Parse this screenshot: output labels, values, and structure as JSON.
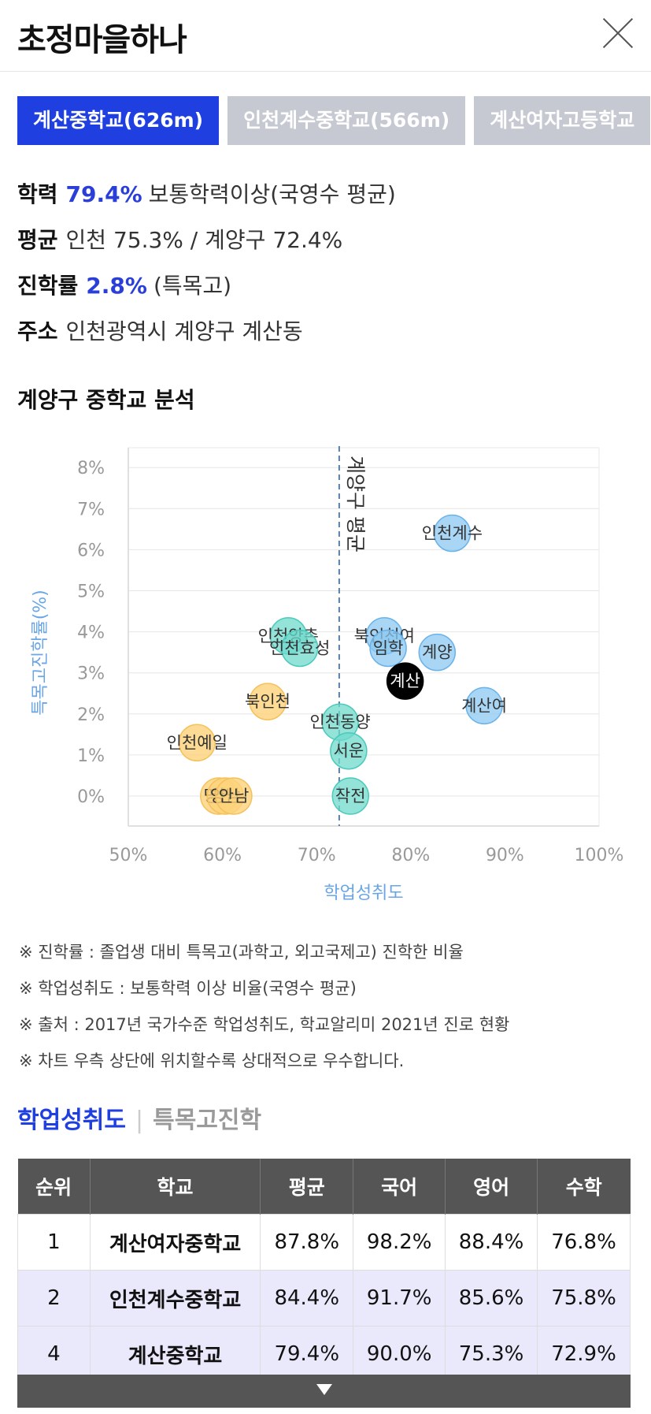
{
  "header": {
    "title": "초정마을하나",
    "close_icon": "close-icon"
  },
  "school_tabs": [
    {
      "label": "계산중학교(626m)",
      "active": true
    },
    {
      "label": "인천계수중학교(566m)",
      "active": false
    },
    {
      "label": "계산여자고등학교",
      "active": false
    }
  ],
  "info": {
    "achievement": {
      "key": "학력",
      "value": "79.4%",
      "desc": "보통학력이상(국영수 평균)"
    },
    "average": {
      "key": "평균",
      "desc": "인천 75.3% / 계양구 72.4%"
    },
    "advance": {
      "key": "진학률",
      "value": "2.8%",
      "desc": "(특목고)"
    },
    "address": {
      "key": "주소",
      "desc": "인천광역시 계양구 계산동"
    }
  },
  "section_title": "계양구 중학교 분석",
  "chart_data": {
    "type": "scatter",
    "xlabel": "학업성취도",
    "ylabel": "특목고진학률(%)",
    "xlim": [
      50,
      100
    ],
    "ylim": [
      -0.7,
      8.5
    ],
    "x_ticks": [
      "50%",
      "60%",
      "70%",
      "80%",
      "90%",
      "100%"
    ],
    "y_ticks": [
      "0%",
      "1%",
      "2%",
      "3%",
      "4%",
      "5%",
      "6%",
      "7%",
      "8%"
    ],
    "reference_line": {
      "x": 72.4,
      "label": "계양구 평균"
    },
    "colors": {
      "blue": "#8cc8f0",
      "teal": "#6fd9cc",
      "yellow": "#fdd27a",
      "black": "#000000"
    },
    "points": [
      {
        "name": "인천계수",
        "x": 84.4,
        "y": 6.4,
        "color": "blue"
      },
      {
        "name": "북인천여",
        "x": 77.2,
        "y": 3.9,
        "color": "blue"
      },
      {
        "name": "임학",
        "x": 77.6,
        "y": 3.6,
        "color": "blue"
      },
      {
        "name": "계양",
        "x": 82.8,
        "y": 3.5,
        "color": "blue"
      },
      {
        "name": "계산",
        "x": 79.4,
        "y": 2.8,
        "color": "black"
      },
      {
        "name": "계산여",
        "x": 87.8,
        "y": 2.2,
        "color": "blue"
      },
      {
        "name": "인천양촌",
        "x": 67.0,
        "y": 3.9,
        "color": "teal"
      },
      {
        "name": "인천효성",
        "x": 68.2,
        "y": 3.6,
        "color": "teal"
      },
      {
        "name": "북인천",
        "x": 64.8,
        "y": 2.3,
        "color": "yellow"
      },
      {
        "name": "인천동양",
        "x": 72.5,
        "y": 1.8,
        "color": "teal"
      },
      {
        "name": "서운",
        "x": 73.4,
        "y": 1.1,
        "color": "teal"
      },
      {
        "name": "인천예일",
        "x": 57.3,
        "y": 1.3,
        "color": "yellow"
      },
      {
        "name": "작전",
        "x": 73.6,
        "y": 0.0,
        "color": "teal"
      },
      {
        "name": "명현",
        "x": 59.6,
        "y": 0.0,
        "color": "yellow"
      },
      {
        "name": "양남",
        "x": 60.3,
        "y": 0.0,
        "color": "yellow"
      },
      {
        "name": "안남",
        "x": 61.2,
        "y": 0.0,
        "color": "yellow"
      }
    ]
  },
  "notes": [
    "※ 진학률 : 졸업생 대비 특목고(과학고, 외고국제고) 진학한 비율",
    "※ 학업성취도 : 보통학력 이상 비율(국영수 평균)",
    "※ 출처 : 2017년 국가수준 학업성취도, 학교알리미 2021년 진로 현황",
    "※ 차트 우측 상단에 위치할수록 상대적으로 우수합니다."
  ],
  "subtabs": {
    "active": "학업성취도",
    "separator": "|",
    "inactive": "특목고진학"
  },
  "table": {
    "headers": [
      "순위",
      "학교",
      "평균",
      "국어",
      "영어",
      "수학"
    ],
    "rows": [
      {
        "rank": "1",
        "school": "계산여자중학교",
        "avg": "87.8%",
        "kor": "98.2%",
        "eng": "88.4%",
        "math": "76.8%",
        "highlight": false
      },
      {
        "rank": "2",
        "school": "인천계수중학교",
        "avg": "84.4%",
        "kor": "91.7%",
        "eng": "85.6%",
        "math": "75.8%",
        "highlight": true
      },
      {
        "rank": "4",
        "school": "계산중학교",
        "avg": "79.4%",
        "kor": "90.0%",
        "eng": "75.3%",
        "math": "72.9%",
        "highlight": true
      }
    ]
  },
  "more_icon": "chevron-down-icon"
}
